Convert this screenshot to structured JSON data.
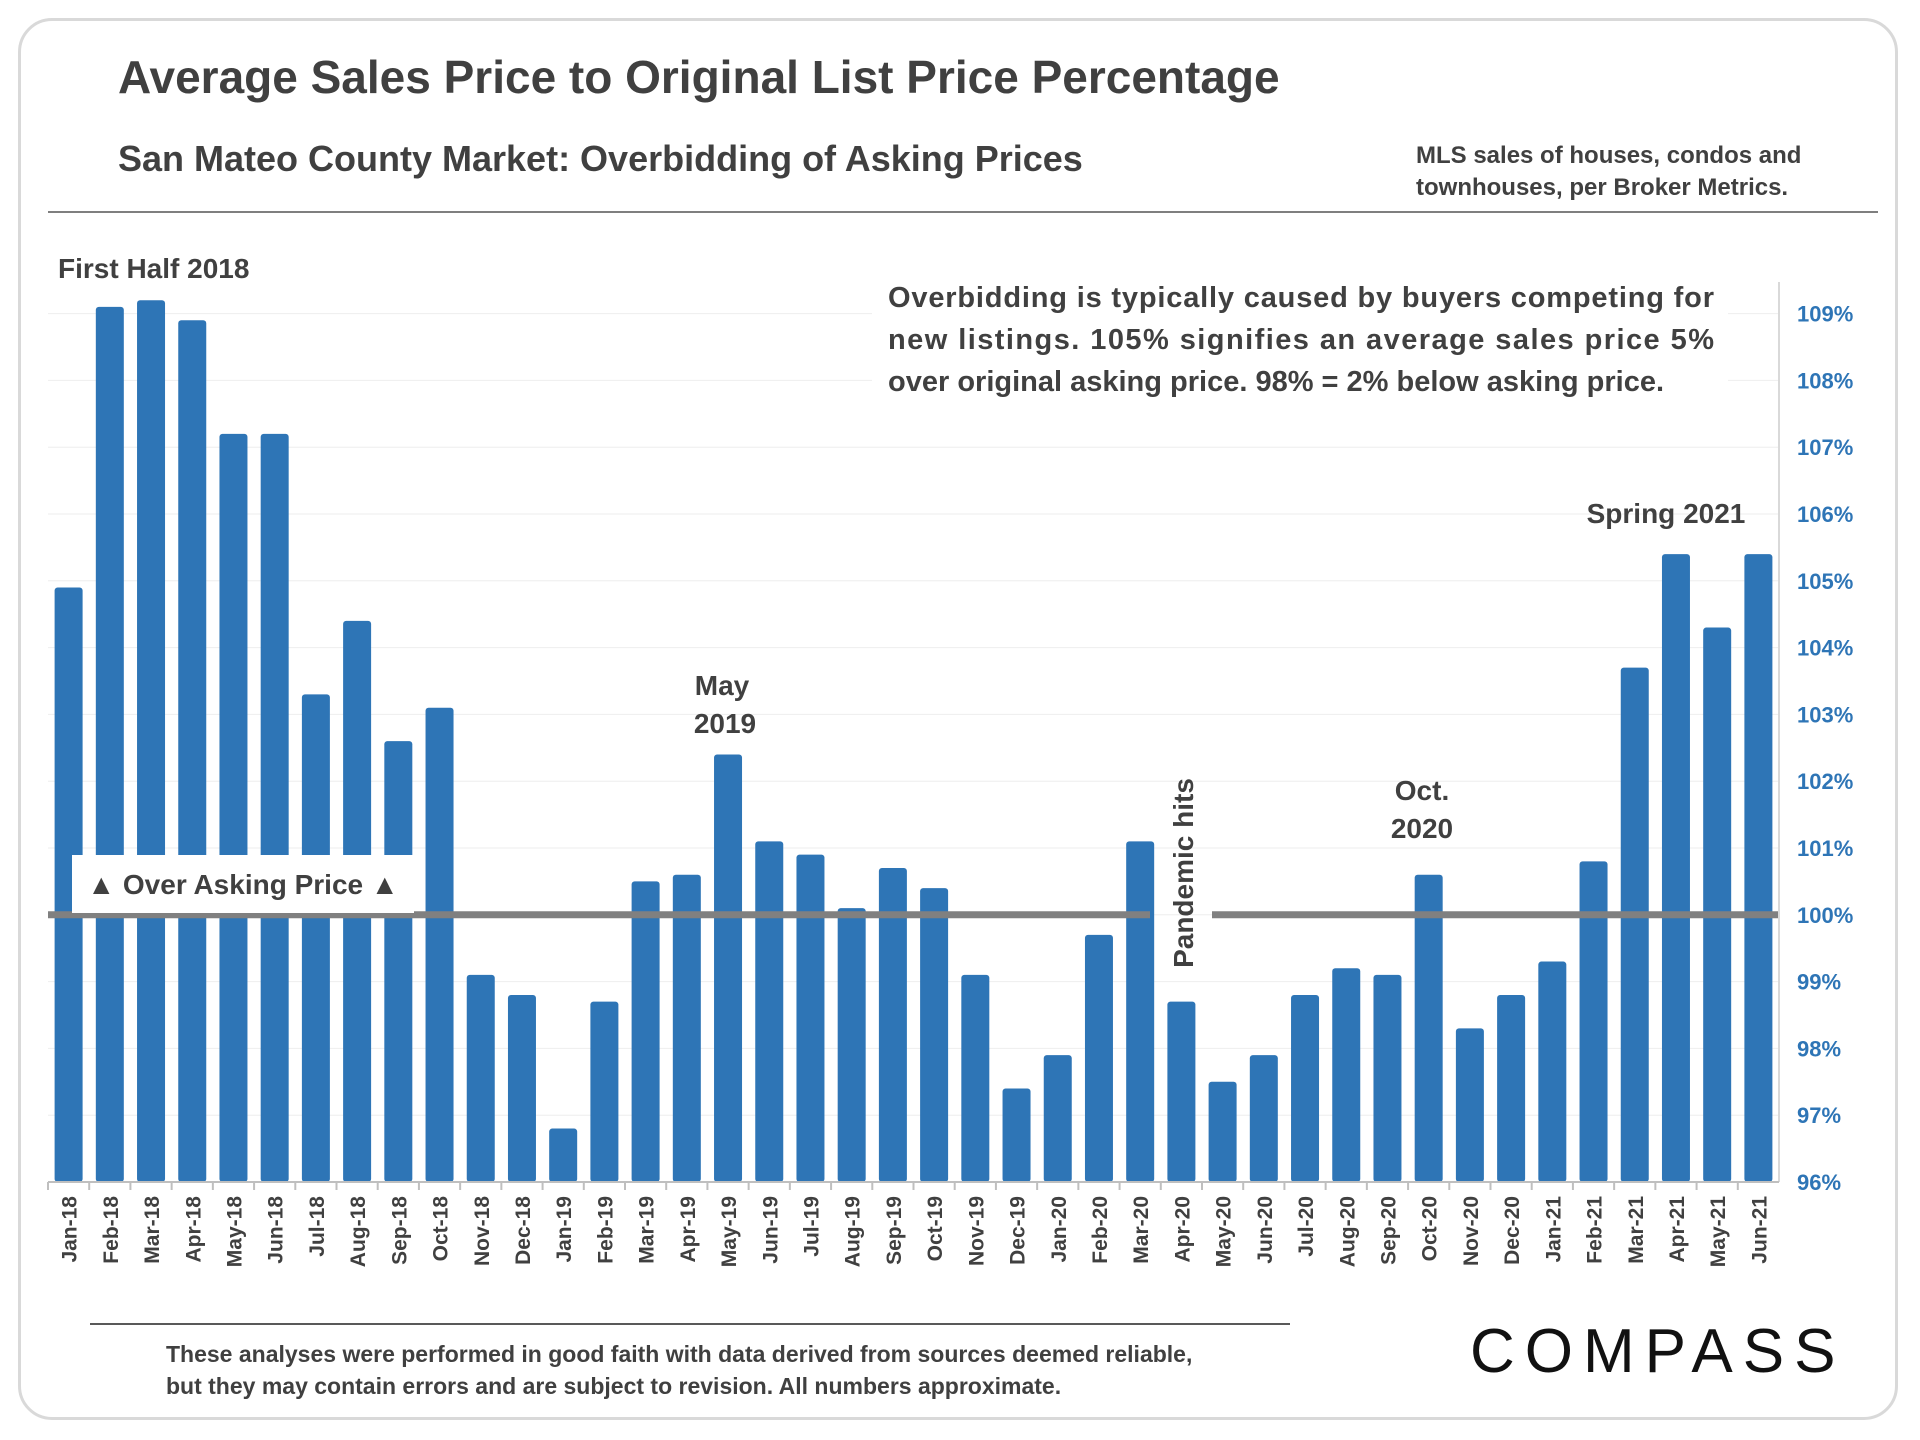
{
  "header": {
    "title": "Average Sales Price to Original List Price Percentage",
    "subtitle": "San Mateo County Market: Overbidding of Asking Prices",
    "source_line1": "MLS sales of houses, condos and",
    "source_line2": "townhouses, per Broker Metrics."
  },
  "footer": {
    "disclaimer_line1": "These analyses were performed in good faith with data derived from sources deemed reliable,",
    "disclaimer_line2": "but they may contain errors and are subject to revision. All numbers approximate.",
    "logo": "COMPASS"
  },
  "chart_data": {
    "type": "bar",
    "title": "Average Sales Price to Original List Price Percentage",
    "ylim": [
      96,
      109.5
    ],
    "y_axis_position": "right",
    "y_ticks": [
      "96%",
      "97%",
      "98%",
      "99%",
      "100%",
      "101%",
      "102%",
      "103%",
      "104%",
      "105%",
      "106%",
      "107%",
      "108%",
      "109%"
    ],
    "categories": [
      "Jan-18",
      "Feb-18",
      "Mar-18",
      "Apr-18",
      "May-18",
      "Jun-18",
      "Jul-18",
      "Aug-18",
      "Sep-18",
      "Oct-18",
      "Nov-18",
      "Dec-18",
      "Jan-19",
      "Feb-19",
      "Mar-19",
      "Apr-19",
      "May-19",
      "Jun-19",
      "Jul-19",
      "Aug-19",
      "Sep-19",
      "Oct-19",
      "Nov-19",
      "Dec-19",
      "Jan-20",
      "Feb-20",
      "Mar-20",
      "Apr-20",
      "May-20",
      "Jun-20",
      "Jul-20",
      "Aug-20",
      "Sep-20",
      "Oct-20",
      "Nov-20",
      "Dec-20",
      "Jan-21",
      "Feb-21",
      "Mar-21",
      "Apr-21",
      "May-21",
      "Jun-21"
    ],
    "values": [
      104.9,
      109.1,
      109.2,
      108.9,
      107.2,
      107.2,
      103.3,
      104.4,
      102.6,
      103.1,
      99.1,
      98.8,
      96.8,
      98.7,
      100.5,
      100.6,
      102.4,
      101.1,
      100.9,
      100.1,
      100.7,
      100.4,
      99.1,
      97.4,
      97.9,
      99.7,
      101.1,
      98.7,
      97.5,
      97.9,
      98.8,
      99.2,
      99.1,
      100.6,
      98.3,
      98.8,
      99.3,
      100.8,
      103.7,
      105.4,
      104.3,
      105.4
    ],
    "bar_color": "#2e75b6",
    "reference_line": {
      "value": 100,
      "label": "▲ Over Asking Price ▲",
      "color": "#808080"
    },
    "annotations": {
      "first_half_2018": "First Half 2018",
      "may_2019_line1": "May",
      "may_2019_line2": "2019",
      "pandemic": "Pandemic hits",
      "oct_2020_line1": "Oct.",
      "oct_2020_line2": "2020",
      "spring_2021": "Spring 2021",
      "pandemic_color": "#c00000"
    },
    "note_lines": [
      "Overbidding is typically caused by buyers competing for",
      "new listings. 105% signifies an average sales price 5%",
      "over original asking price. 98% = 2% below asking price."
    ]
  }
}
